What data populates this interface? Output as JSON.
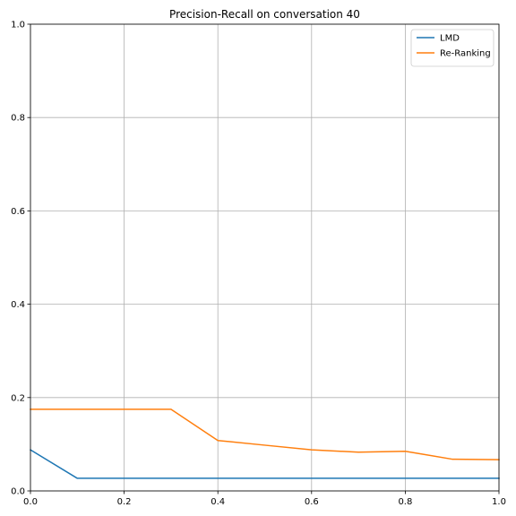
{
  "chart_data": {
    "type": "line",
    "title": "Precision-Recall on conversation 40",
    "xlabel": "",
    "ylabel": "",
    "xlim": [
      0.0,
      1.0
    ],
    "ylim": [
      0.0,
      1.0
    ],
    "xticks": [
      0.0,
      0.2,
      0.4,
      0.6,
      0.8,
      1.0
    ],
    "yticks": [
      0.0,
      0.2,
      0.4,
      0.6,
      0.8,
      1.0
    ],
    "xtick_labels": [
      "0.0",
      "0.2",
      "0.4",
      "0.6",
      "0.8",
      "1.0"
    ],
    "ytick_labels": [
      "0.0",
      "0.2",
      "0.4",
      "0.6",
      "0.8",
      "1.0"
    ],
    "grid": true,
    "legend_position": "top-right",
    "x": [
      0.0,
      0.1,
      0.2,
      0.3,
      0.4,
      0.5,
      0.6,
      0.7,
      0.8,
      0.9,
      1.0
    ],
    "series": [
      {
        "name": "LMD",
        "color": "#1f77b4",
        "values": [
          0.088,
          0.027,
          0.027,
          0.027,
          0.027,
          0.027,
          0.027,
          0.027,
          0.027,
          0.027,
          0.027
        ]
      },
      {
        "name": "Re-Ranking",
        "color": "#ff7f0e",
        "values": [
          0.175,
          0.175,
          0.175,
          0.175,
          0.108,
          0.098,
          0.088,
          0.083,
          0.085,
          0.068,
          0.067
        ]
      }
    ]
  },
  "colors": {
    "grid": "#b0b0b0",
    "axis": "#000000",
    "background": "#ffffff"
  }
}
